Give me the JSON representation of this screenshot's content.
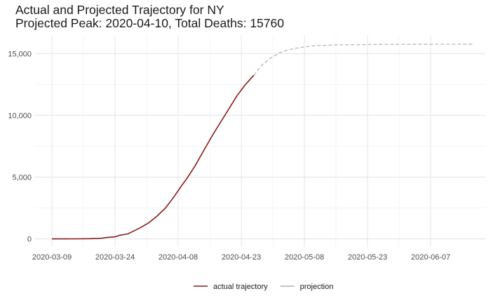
{
  "chart_data": {
    "type": "line",
    "title": "Actual and Projected Trajectory for NY",
    "subtitle": "Projected Peak: 2020-04-10, Total Deaths: 15760",
    "xlabel": "",
    "ylabel": "",
    "x_type": "date",
    "xlim": [
      "2020-03-05",
      "2020-06-20"
    ],
    "ylim": [
      -650,
      16500
    ],
    "x_ticks": [
      "2020-03-09",
      "2020-03-24",
      "2020-04-08",
      "2020-04-23",
      "2020-05-08",
      "2020-05-23",
      "2020-06-07"
    ],
    "y_ticks": [
      0,
      5000,
      10000,
      15000
    ],
    "y_tick_labels": [
      "0",
      "5,000",
      "10,000",
      "15,000"
    ],
    "grid": true,
    "legend_position": "bottom",
    "series": [
      {
        "name": "actual trajectory",
        "color": "#8B1A1A",
        "style": "solid",
        "points": [
          [
            "2020-03-09",
            0
          ],
          [
            "2020-03-12",
            0
          ],
          [
            "2020-03-15",
            5
          ],
          [
            "2020-03-18",
            15
          ],
          [
            "2020-03-20",
            35
          ],
          [
            "2020-03-21",
            60
          ],
          [
            "2020-03-22",
            110
          ],
          [
            "2020-03-24",
            160
          ],
          [
            "2020-03-25",
            280
          ],
          [
            "2020-03-27",
            400
          ],
          [
            "2020-03-28",
            560
          ],
          [
            "2020-03-30",
            900
          ],
          [
            "2020-04-01",
            1300
          ],
          [
            "2020-04-03",
            1850
          ],
          [
            "2020-04-05",
            2500
          ],
          [
            "2020-04-07",
            3400
          ],
          [
            "2020-04-09",
            4400
          ],
          [
            "2020-04-10",
            4850
          ],
          [
            "2020-04-12",
            5900
          ],
          [
            "2020-04-14",
            7100
          ],
          [
            "2020-04-16",
            8300
          ],
          [
            "2020-04-18",
            9400
          ],
          [
            "2020-04-20",
            10500
          ],
          [
            "2020-04-22",
            11600
          ],
          [
            "2020-04-24",
            12500
          ],
          [
            "2020-04-26",
            13250
          ]
        ]
      },
      {
        "name": "projection",
        "color": "#b0b0b0",
        "style": "dashed",
        "points": [
          [
            "2020-04-26",
            13250
          ],
          [
            "2020-04-27",
            13700
          ],
          [
            "2020-04-28",
            14100
          ],
          [
            "2020-04-30",
            14650
          ],
          [
            "2020-05-02",
            15050
          ],
          [
            "2020-05-04",
            15300
          ],
          [
            "2020-05-07",
            15500
          ],
          [
            "2020-05-10",
            15620
          ],
          [
            "2020-05-15",
            15700
          ],
          [
            "2020-05-25",
            15745
          ],
          [
            "2020-06-05",
            15755
          ],
          [
            "2020-06-17",
            15760
          ]
        ]
      }
    ]
  }
}
